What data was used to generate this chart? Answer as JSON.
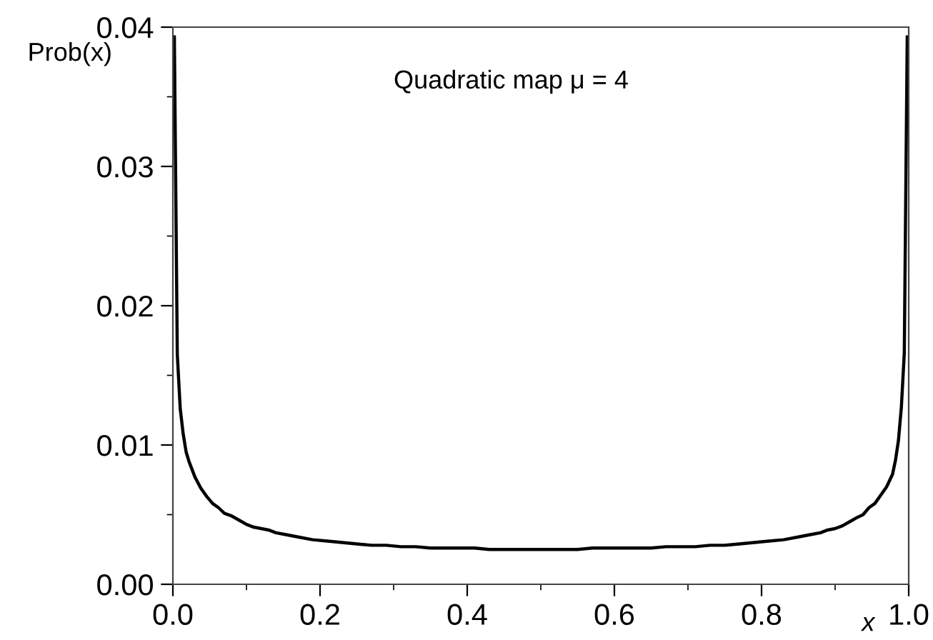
{
  "chart_data": {
    "type": "line",
    "ylabel": "Prob(x)",
    "xlabel": "x",
    "annotations": [
      "Quadratic map μ = 4"
    ],
    "xlim": [
      0,
      1
    ],
    "ylim": [
      0,
      0.04
    ],
    "xticks": [
      {
        "value": 0,
        "label": "0.0"
      },
      0.2,
      0.4,
      0.6,
      0.8,
      {
        "value": 1,
        "label": "1.0"
      }
    ],
    "yticks": [
      {
        "value": 0,
        "label": "0.00"
      },
      0.01,
      0.02,
      0.03,
      {
        "value": 0.04,
        "label": "0.04"
      }
    ],
    "grid": false,
    "marker": "none",
    "line_style": "solid",
    "series": [
      {
        "color": "#000000",
        "x": [
          0.002,
          0.006,
          0.01,
          0.014,
          0.018,
          0.022,
          0.03,
          0.038,
          0.046,
          0.054,
          0.062,
          0.07,
          0.08,
          0.09,
          0.1,
          0.11,
          0.12,
          0.13,
          0.14,
          0.15,
          0.17,
          0.19,
          0.21,
          0.23,
          0.25,
          0.27,
          0.29,
          0.31,
          0.33,
          0.35,
          0.37,
          0.39,
          0.41,
          0.43,
          0.45,
          0.47,
          0.49,
          0.51,
          0.53,
          0.55,
          0.57,
          0.59,
          0.61,
          0.63,
          0.65,
          0.67,
          0.69,
          0.71,
          0.73,
          0.75,
          0.77,
          0.79,
          0.81,
          0.83,
          0.85,
          0.86,
          0.87,
          0.88,
          0.89,
          0.9,
          0.91,
          0.92,
          0.93,
          0.938,
          0.946,
          0.954,
          0.962,
          0.97,
          0.978,
          0.982,
          0.986,
          0.99,
          0.994,
          0.998
        ],
        "values": [
          0.0393,
          0.0165,
          0.0126,
          0.0108,
          0.0095,
          0.0088,
          0.0077,
          0.0069,
          0.0063,
          0.0058,
          0.0055,
          0.0051,
          0.0049,
          0.0046,
          0.0043,
          0.0041,
          0.004,
          0.0039,
          0.0037,
          0.0036,
          0.0034,
          0.0032,
          0.0031,
          0.003,
          0.0029,
          0.0028,
          0.0028,
          0.0027,
          0.0027,
          0.0026,
          0.0026,
          0.0026,
          0.0026,
          0.0025,
          0.0025,
          0.0025,
          0.0025,
          0.0025,
          0.0025,
          0.0025,
          0.0026,
          0.0026,
          0.0026,
          0.0026,
          0.0026,
          0.0027,
          0.0027,
          0.0027,
          0.0028,
          0.0028,
          0.0029,
          0.003,
          0.0031,
          0.0032,
          0.0034,
          0.0035,
          0.0036,
          0.0037,
          0.0039,
          0.004,
          0.0042,
          0.0045,
          0.0048,
          0.005,
          0.0055,
          0.0058,
          0.0064,
          0.007,
          0.0079,
          0.0089,
          0.0103,
          0.0127,
          0.0166,
          0.0393
        ]
      }
    ]
  }
}
